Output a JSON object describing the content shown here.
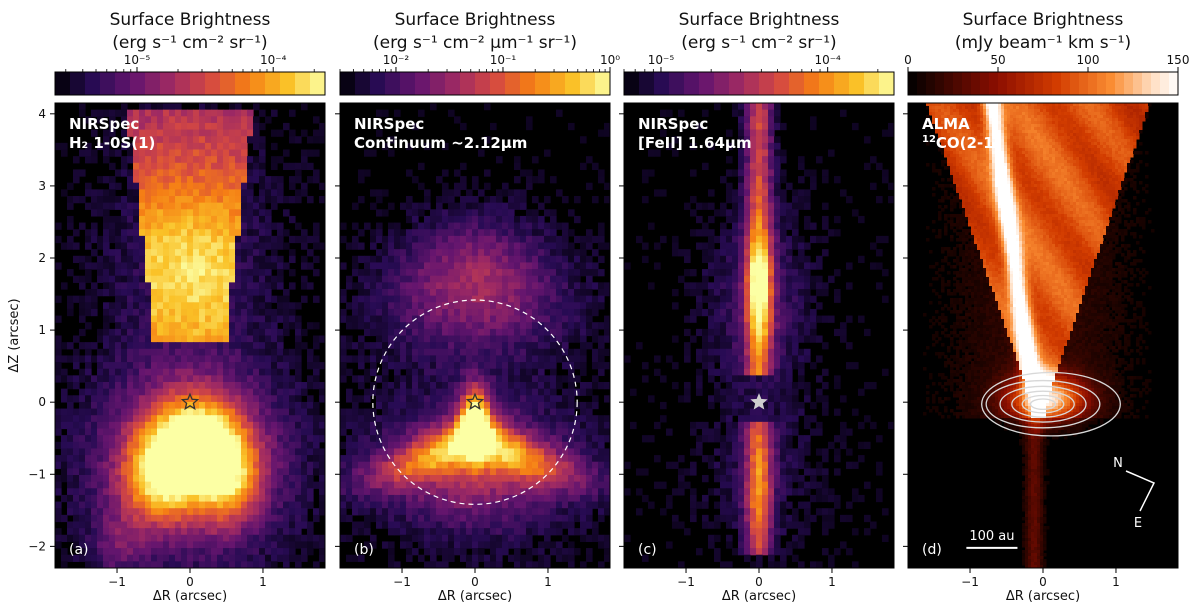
{
  "chart_data": [
    {
      "type": "heatmap",
      "panel_label": "(a)",
      "instrument": "NIRSpec",
      "line": "H₂ 1-0S(1)",
      "colorbar": {
        "title": "Surface Brightness",
        "unit": "(erg s⁻¹ cm⁻² sr⁻¹)",
        "scale": "log",
        "range": [
          2.5e-06,
          0.00024
        ],
        "ticks": [
          {
            "value": 1e-05,
            "label": "10⁻⁵"
          },
          {
            "value": 0.0001,
            "label": "10⁻⁴"
          }
        ],
        "colormap": "inferno"
      },
      "xlabel": "ΔR (arcsec)",
      "ylabel": "ΔZ (arcsec)",
      "xlim": [
        -1.85,
        1.85
      ],
      "ylim": [
        -2.3,
        4.15
      ],
      "xticks": [
        -1,
        0,
        1
      ],
      "yticks": [
        -2,
        -1,
        0,
        1,
        2,
        3,
        4
      ],
      "source_marker": {
        "x": 0,
        "y": 0,
        "style": "star"
      },
      "structure": [
        {
          "feature": "upper outflow cone",
          "x_range": [
            -0.8,
            0.8
          ],
          "z_range": [
            0.9,
            4.0
          ],
          "peak_z": 1.8,
          "relative_brightness": 0.7
        },
        {
          "feature": "lower lobe",
          "x_range": [
            -1.4,
            1.4
          ],
          "z_range": [
            -2.2,
            0.1
          ],
          "peak_z": -0.6,
          "relative_brightness": 1.0
        }
      ]
    },
    {
      "type": "heatmap",
      "panel_label": "(b)",
      "instrument": "NIRSpec",
      "line": "Continuum ~2.12μm",
      "colorbar": {
        "title": "Surface Brightness",
        "unit": "(erg s⁻¹ cm⁻² μm⁻¹ sr⁻¹)",
        "scale": "log",
        "range": [
          0.003,
          1
        ],
        "ticks": [
          {
            "value": 0.01,
            "label": "10⁻²"
          },
          {
            "value": 0.1,
            "label": "10⁻¹"
          },
          {
            "value": 1,
            "label": "10⁰"
          }
        ],
        "colormap": "inferno"
      },
      "xlabel": "ΔR (arcsec)",
      "xlim": [
        -1.85,
        1.85
      ],
      "ylim": [
        -2.3,
        4.15
      ],
      "xticks": [
        -1,
        0,
        1
      ],
      "source_marker": {
        "x": 0,
        "y": 0,
        "style": "star"
      },
      "circle": {
        "x": 0,
        "y": 0,
        "radius": 1.4,
        "style": "dashed"
      },
      "structure": [
        {
          "feature": "upper diffuse arc",
          "x_range": [
            -1.1,
            1.1
          ],
          "z_range": [
            0.9,
            2.6
          ],
          "relative_brightness": 0.3
        },
        {
          "feature": "lower bright cone",
          "x_range": [
            -1.3,
            1.3
          ],
          "z_range": [
            -1.6,
            0.1
          ],
          "relative_brightness": 1.0
        }
      ]
    },
    {
      "type": "heatmap",
      "panel_label": "(c)",
      "instrument": "NIRSpec",
      "line": "[FeII] 1.64μm",
      "colorbar": {
        "title": "Surface Brightness",
        "unit": "(erg s⁻¹ cm⁻² sr⁻¹)",
        "scale": "log",
        "range": [
          6e-06,
          0.00025
        ],
        "ticks": [
          {
            "value": 1e-05,
            "label": "10⁻⁵"
          },
          {
            "value": 0.0001,
            "label": "10⁻⁴"
          }
        ],
        "colormap": "inferno"
      },
      "xlabel": "ΔR (arcsec)",
      "xlim": [
        -1.85,
        1.85
      ],
      "ylim": [
        -2.3,
        4.15
      ],
      "xticks": [
        -1,
        0,
        1
      ],
      "source_marker": {
        "x": 0,
        "y": 0,
        "style": "star"
      },
      "structure": [
        {
          "feature": "upper jet",
          "x_range": [
            -0.2,
            0.2
          ],
          "z_range": [
            0.4,
            4.1
          ],
          "peak_z": 1.6,
          "relative_brightness": 1.0
        },
        {
          "feature": "lower jet",
          "x_range": [
            -0.2,
            0.2
          ],
          "z_range": [
            -2.0,
            -0.2
          ],
          "peak_z": -1.1,
          "relative_brightness": 0.8
        }
      ]
    },
    {
      "type": "heatmap",
      "panel_label": "(d)",
      "instrument": "ALMA",
      "line_sup": "12",
      "line": "CO(2-1)",
      "colorbar": {
        "title": "Surface Brightness",
        "unit": "(mJy beam⁻¹ km s⁻¹)",
        "scale": "linear",
        "range": [
          0,
          150
        ],
        "ticks": [
          {
            "value": 0,
            "label": "0"
          },
          {
            "value": 50,
            "label": "50"
          },
          {
            "value": 100,
            "label": "100"
          },
          {
            "value": 150,
            "label": "150"
          }
        ],
        "colormap": "gist_heat"
      },
      "xlabel": "ΔR (arcsec)",
      "xlim": [
        -1.85,
        1.85
      ],
      "ylim": [
        -2.3,
        4.15
      ],
      "xticks": [
        -1,
        0,
        1
      ],
      "structure": [
        {
          "feature": "V-shaped outflow",
          "apex_z": 0.0,
          "top_x_range": [
            -1.5,
            1.5
          ],
          "relative_brightness": 0.8
        },
        {
          "feature": "bright ridge",
          "from": [
            -0.1,
            0.2
          ],
          "to": [
            -0.65,
            4.0
          ],
          "relative_brightness": 1.0
        },
        {
          "feature": "disk contours",
          "x": 0,
          "y": 0.0,
          "semi_axes": [
            0.95,
            0.4
          ]
        }
      ],
      "scale_bar": {
        "label": "100 au",
        "length_arcsec": 0.7
      },
      "compass": {
        "north": "N",
        "east": "E"
      }
    }
  ]
}
